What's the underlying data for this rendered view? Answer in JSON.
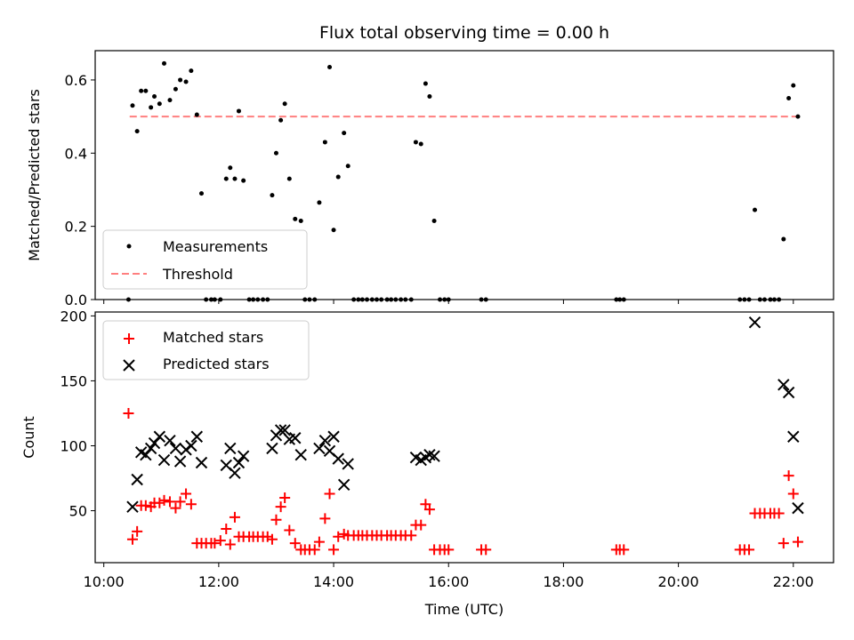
{
  "chart_data": [
    {
      "type": "scatter",
      "title": "Flux total observing time = 0.00 h",
      "xlabel": "",
      "ylabel": "Matched/Predicted stars",
      "xlim": [
        9.85,
        22.7
      ],
      "ylim": [
        0,
        0.68
      ],
      "x_ticks": [
        10,
        12,
        14,
        16,
        18,
        20,
        22
      ],
      "y_ticks": [
        0.0,
        0.2,
        0.4,
        0.6
      ],
      "y_tick_labels": [
        "0.0",
        "0.2",
        "0.4",
        "0.6"
      ],
      "legend": {
        "position": "lower-left",
        "entries": [
          "Measurements",
          "Threshold"
        ]
      },
      "colors": {
        "measurements": "#000000",
        "threshold": "#ff7f7f"
      },
      "threshold": {
        "name": "Threshold",
        "value": 0.5,
        "x_range": [
          10.45,
          22.1
        ]
      },
      "series": [
        {
          "name": "Measurements",
          "x": [
            10.43,
            10.5,
            10.58,
            10.65,
            10.73,
            10.82,
            10.88,
            10.97,
            11.05,
            11.15,
            11.25,
            11.33,
            11.43,
            11.52,
            11.62,
            11.7,
            11.78,
            11.87,
            11.93,
            12.03,
            12.13,
            12.2,
            12.28,
            12.35,
            12.43,
            12.53,
            12.6,
            12.68,
            12.77,
            12.85,
            12.93,
            13.0,
            13.08,
            13.15,
            13.23,
            13.33,
            13.43,
            13.5,
            13.58,
            13.67,
            13.75,
            13.85,
            13.93,
            14.0,
            14.08,
            14.18,
            14.25,
            14.35,
            14.43,
            14.5,
            14.58,
            14.67,
            14.75,
            14.83,
            14.93,
            15.0,
            15.08,
            15.17,
            15.25,
            15.35,
            15.43,
            15.52,
            15.6,
            15.67,
            15.75,
            15.85,
            15.93,
            16.0,
            16.57,
            16.65,
            18.92,
            18.98,
            19.05,
            21.07,
            21.15,
            21.23,
            21.33,
            21.42,
            21.5,
            21.6,
            21.67,
            21.75,
            21.83,
            21.92,
            22.0,
            22.08
          ],
          "y": [
            0.0,
            0.53,
            0.46,
            0.57,
            0.57,
            0.525,
            0.555,
            0.535,
            0.645,
            0.545,
            0.575,
            0.6,
            0.595,
            0.625,
            0.505,
            0.29,
            0.0,
            0.0,
            0.0,
            0.0,
            0.33,
            0.36,
            0.33,
            0.515,
            0.325,
            0.0,
            0.0,
            0.0,
            0.0,
            0.0,
            0.285,
            0.4,
            0.49,
            0.535,
            0.33,
            0.22,
            0.215,
            0.0,
            0.0,
            0.0,
            0.265,
            0.43,
            0.635,
            0.19,
            0.335,
            0.455,
            0.365,
            0.0,
            0.0,
            0.0,
            0.0,
            0.0,
            0.0,
            0.0,
            0.0,
            0.0,
            0.0,
            0.0,
            0.0,
            0.0,
            0.43,
            0.425,
            0.59,
            0.555,
            0.215,
            0.0,
            0.0,
            0.0,
            0.0,
            0.0,
            0.0,
            0.0,
            0.0,
            0.0,
            0.0,
            0.0,
            0.245,
            0.0,
            0.0,
            0.0,
            0.0,
            0.0,
            0.165,
            0.55,
            0.585,
            0.5
          ]
        }
      ]
    },
    {
      "type": "scatter",
      "title": "",
      "xlabel": "Time (UTC)",
      "ylabel": "Count",
      "xlim": [
        9.85,
        22.7
      ],
      "ylim": [
        10,
        203
      ],
      "x_ticks": [
        10,
        12,
        14,
        16,
        18,
        20,
        22
      ],
      "x_tick_labels": [
        "10:00",
        "12:00",
        "14:00",
        "16:00",
        "18:00",
        "20:00",
        "22:00"
      ],
      "y_ticks": [
        50,
        100,
        150,
        200
      ],
      "y_tick_labels": [
        "50",
        "100",
        "150",
        "200"
      ],
      "legend": {
        "position": "upper-left",
        "entries": [
          "Matched stars",
          "Predicted stars"
        ]
      },
      "colors": {
        "matched": "#ff0000",
        "predicted": "#000000"
      },
      "series": [
        {
          "name": "Matched stars",
          "marker": "plus",
          "x": [
            10.43,
            10.5,
            10.58,
            10.65,
            10.73,
            10.82,
            10.88,
            10.97,
            11.05,
            11.15,
            11.25,
            11.33,
            11.43,
            11.52,
            11.62,
            11.7,
            11.78,
            11.87,
            11.93,
            12.03,
            12.13,
            12.2,
            12.28,
            12.35,
            12.43,
            12.53,
            12.6,
            12.68,
            12.77,
            12.85,
            12.93,
            13.0,
            13.08,
            13.15,
            13.23,
            13.33,
            13.43,
            13.5,
            13.58,
            13.67,
            13.75,
            13.85,
            13.93,
            14.0,
            14.08,
            14.18,
            14.25,
            14.35,
            14.43,
            14.5,
            14.58,
            14.67,
            14.75,
            14.83,
            14.93,
            15.0,
            15.08,
            15.17,
            15.25,
            15.35,
            15.43,
            15.52,
            15.6,
            15.67,
            15.75,
            15.85,
            15.93,
            16.0,
            16.57,
            16.65,
            18.92,
            18.98,
            19.05,
            21.07,
            21.15,
            21.23,
            21.33,
            21.42,
            21.5,
            21.6,
            21.67,
            21.75,
            21.83,
            21.92,
            22.0,
            22.08
          ],
          "y": [
            125,
            28,
            34,
            54,
            54,
            53,
            56,
            56,
            58,
            57,
            52,
            57,
            63,
            55,
            25,
            25,
            25,
            25,
            25,
            27,
            36,
            24,
            45,
            30,
            30,
            30,
            30,
            30,
            30,
            30,
            28,
            43,
            53,
            60,
            35,
            25,
            20,
            20,
            20,
            20,
            26,
            44,
            63,
            20,
            30,
            32,
            31,
            31,
            31,
            31,
            31,
            31,
            31,
            31,
            31,
            31,
            31,
            31,
            31,
            31,
            39,
            39,
            55,
            51,
            20,
            20,
            20,
            20,
            20,
            20,
            20,
            20,
            20,
            20,
            20,
            20,
            48,
            48,
            48,
            48,
            48,
            48,
            25,
            77,
            63,
            26
          ]
        },
        {
          "name": "Predicted stars",
          "marker": "x",
          "x": [
            10.5,
            10.58,
            10.65,
            10.73,
            10.82,
            10.88,
            10.97,
            11.05,
            11.15,
            11.25,
            11.33,
            11.43,
            11.52,
            11.62,
            11.7,
            12.13,
            12.2,
            12.28,
            12.35,
            12.43,
            12.93,
            13.0,
            13.08,
            13.15,
            13.23,
            13.33,
            13.43,
            13.75,
            13.85,
            13.93,
            14.0,
            14.08,
            14.18,
            14.25,
            15.43,
            15.52,
            15.6,
            15.67,
            15.75,
            21.33,
            21.83,
            21.92,
            22.0,
            22.08
          ],
          "y": [
            53,
            74,
            95,
            93,
            98,
            102,
            107,
            89,
            104,
            98,
            88,
            97,
            100,
            107,
            87,
            85,
            98,
            79,
            87,
            92,
            98,
            108,
            112,
            112,
            105,
            106,
            93,
            98,
            104,
            96,
            107,
            90,
            70,
            86,
            91,
            89,
            91,
            93,
            92,
            195,
            147,
            141,
            107,
            52
          ]
        }
      ]
    }
  ]
}
